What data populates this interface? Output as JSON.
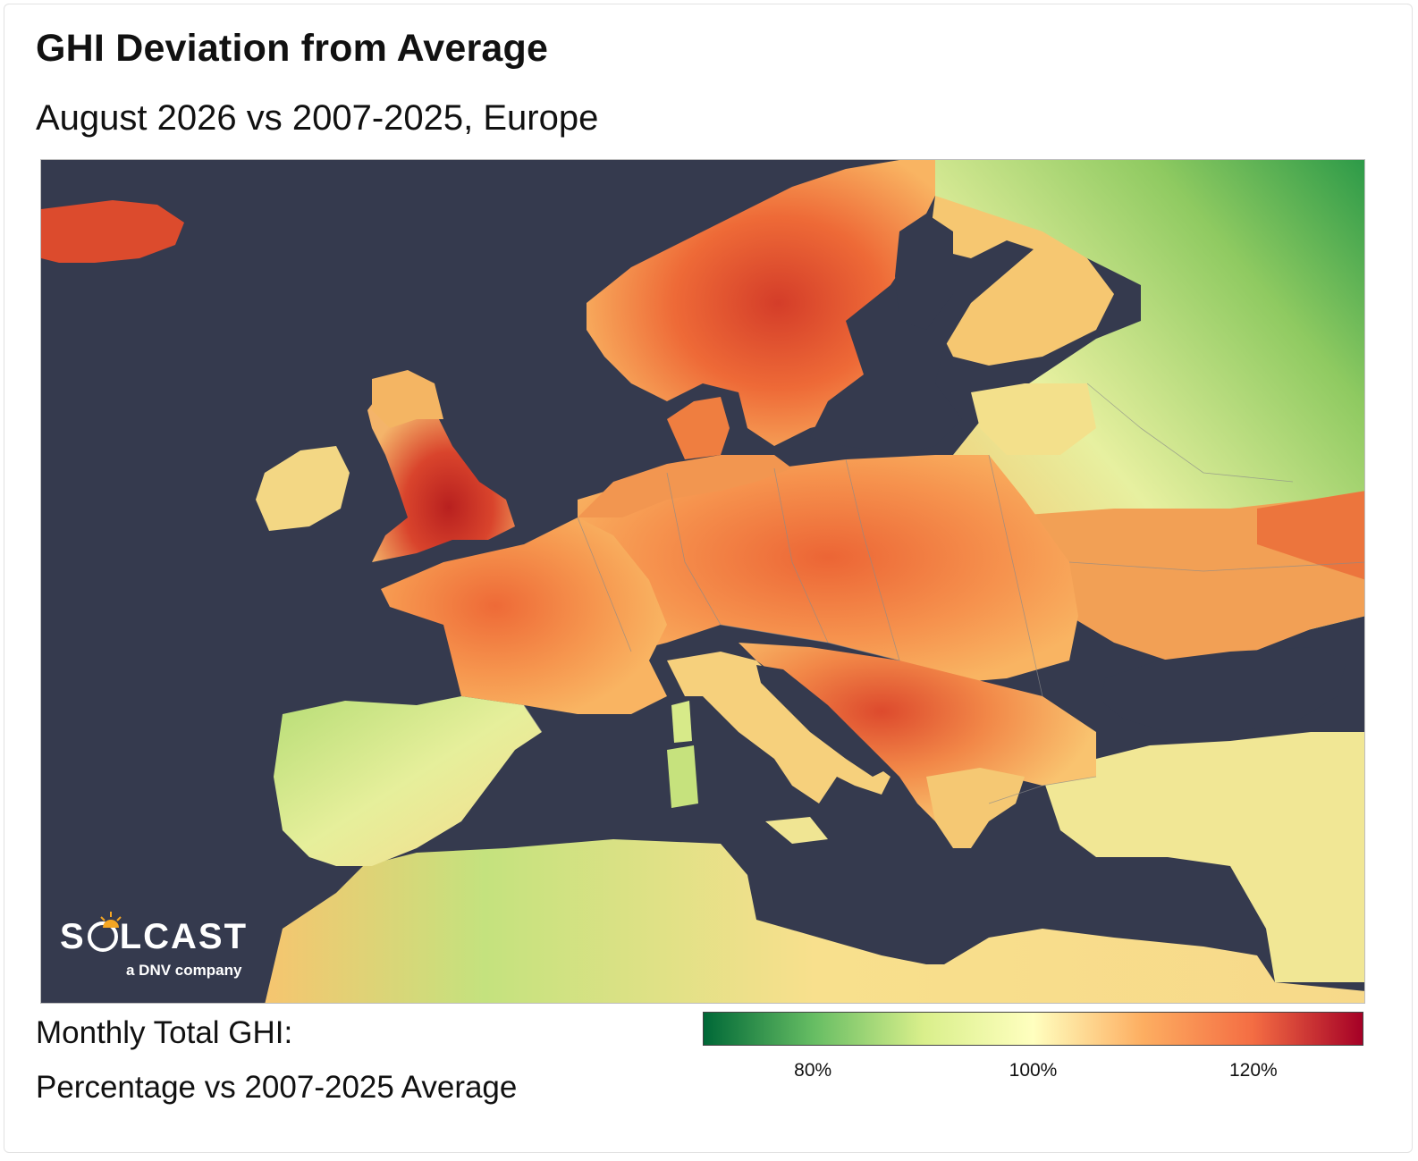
{
  "header": {
    "title": "GHI Deviation from Average",
    "subtitle": "August 2026 vs 2007-2025, Europe"
  },
  "map": {
    "sea_color": "#353a4e",
    "regions": [
      {
        "name": "Iceland",
        "level": "high"
      },
      {
        "name": "Norway / Sweden",
        "level": "high"
      },
      {
        "name": "Great Britain",
        "level": "very high"
      },
      {
        "name": "Ireland",
        "level": "above average"
      },
      {
        "name": "France",
        "level": "high"
      },
      {
        "name": "Central Europe",
        "level": "high"
      },
      {
        "name": "Balkans",
        "level": "high"
      },
      {
        "name": "Iberia",
        "level": "near or below average"
      },
      {
        "name": "Finland / Russia",
        "level": "below average"
      },
      {
        "name": "North Africa",
        "level": "near average"
      },
      {
        "name": "Turkey",
        "level": "near average"
      }
    ]
  },
  "logo": {
    "brand_left": "S",
    "brand_right": "LCAST",
    "tagline": "a DNV company"
  },
  "legend": {
    "label_line1": "Monthly Total GHI:",
    "label_line2": "Percentage vs 2007-2025 Average",
    "colors": [
      "#006837",
      "#66bd63",
      "#d9ef8b",
      "#ffffbf",
      "#fdae61",
      "#f46d43",
      "#a50026"
    ],
    "ticks": [
      {
        "label": "80%",
        "value": 80
      },
      {
        "label": "100%",
        "value": 100
      },
      {
        "label": "120%",
        "value": 120
      }
    ],
    "range": [
      70,
      130
    ]
  }
}
